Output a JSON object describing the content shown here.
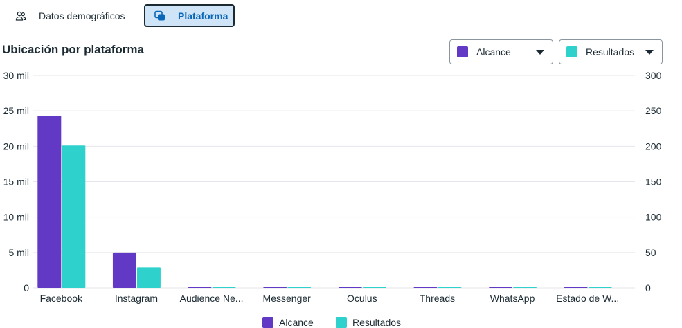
{
  "tabs": [
    {
      "label": "Datos demográficos",
      "icon": "people-icon",
      "selected": false
    },
    {
      "label": "Plataforma",
      "icon": "platforms-icon",
      "selected": true
    }
  ],
  "section_title": "Ubicación por plataforma",
  "dropdowns": [
    {
      "label": "Alcance",
      "color": "#6139c4"
    },
    {
      "label": "Resultados",
      "color": "#2fd1cd"
    }
  ],
  "colors": {
    "reach": "#6139c4",
    "results": "#2fd1cd",
    "grid": "#e4e6eb"
  },
  "chart_data": {
    "type": "bar",
    "title": "Ubicación por plataforma",
    "categories": [
      "Facebook",
      "Instagram",
      "Audience Ne...",
      "Messenger",
      "Oculus",
      "Threads",
      "WhatsApp",
      "Estado de W..."
    ],
    "series": [
      {
        "name": "Alcance",
        "axis": "left",
        "values": [
          24300,
          5000,
          60,
          60,
          60,
          60,
          60,
          60
        ]
      },
      {
        "name": "Resultados",
        "axis": "right",
        "values": [
          201,
          29,
          0.6,
          0.6,
          0.6,
          0.6,
          0.6,
          0.6
        ]
      }
    ],
    "y_left": {
      "ylim": [
        0,
        30000
      ],
      "ticks": [
        0,
        5000,
        10000,
        15000,
        20000,
        25000,
        30000
      ],
      "tick_labels": [
        "0",
        "5 mil",
        "10 mil",
        "15 mil",
        "20 mil",
        "25 mil",
        "30 mil"
      ]
    },
    "y_right": {
      "ylim": [
        0,
        300
      ],
      "ticks": [
        0,
        50,
        100,
        150,
        200,
        250,
        300
      ],
      "tick_labels": [
        "0",
        "50",
        "100",
        "150",
        "200",
        "250",
        "300"
      ]
    },
    "grid": true,
    "legend": {
      "position": "bottom",
      "entries": [
        "Alcance",
        "Resultados"
      ]
    }
  }
}
